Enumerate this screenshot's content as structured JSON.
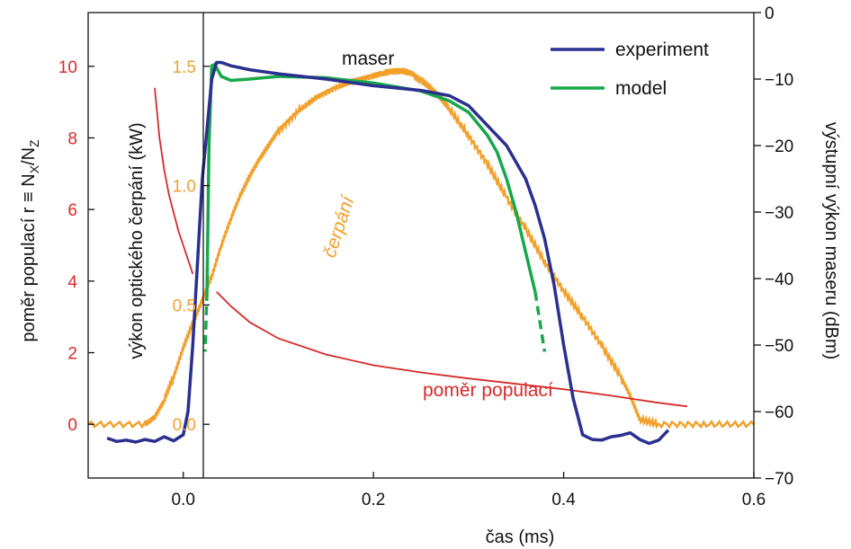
{
  "colors": {
    "experiment": "#2b2f8f",
    "model": "#16a84a",
    "pump": "#f2a02a",
    "ratio": "#d62a2a",
    "axis": "#111111"
  },
  "chart_data": {
    "type": "line",
    "x_axis": {
      "label": "čas (ms)",
      "lim": [
        -0.1,
        0.6
      ],
      "ticks": [
        0.0,
        0.2,
        0.4,
        0.6
      ],
      "tick_labels": [
        "0.0",
        "0.2",
        "0.4",
        "0.6"
      ]
    },
    "left_axis_ratio": {
      "label_prefix": "poměr populací   r ≡ N",
      "label_sub1": "X",
      "label_mid": "/N",
      "label_sub2": "Z",
      "lim": [
        -1.5,
        11.5
      ],
      "ticks": [
        0,
        2,
        4,
        6,
        8,
        10
      ],
      "tick_labels": [
        "0",
        "2",
        "4",
        "6",
        "8",
        "10"
      ]
    },
    "left_axis_pump": {
      "label": "výkon optického čerpání (kW)",
      "lim": [
        -0.225,
        1.725
      ],
      "ticks": [
        0.0,
        0.5,
        1.0,
        1.5
      ],
      "tick_labels": [
        "0.0",
        "0.5",
        "1.0",
        "1.5"
      ]
    },
    "right_axis": {
      "label": "výstupní výkon maseru (dBm)",
      "lim": [
        -70,
        0
      ],
      "ticks": [
        0,
        -10,
        -20,
        -30,
        -40,
        -50,
        -60,
        -70
      ],
      "tick_labels": [
        "0",
        "−10",
        "−20",
        "−30",
        "−40",
        "−50",
        "−60",
        "−70"
      ]
    },
    "legend": {
      "placement": "top-right",
      "entries": [
        {
          "name": "experiment",
          "color_key": "experiment"
        },
        {
          "name": "model",
          "color_key": "model"
        }
      ]
    },
    "annotations": {
      "maser": "maser",
      "pump": "čerpání",
      "ratio": "poměr populací"
    },
    "series": [
      {
        "name": "experiment",
        "axis": "right_dBm",
        "x": [
          -0.08,
          -0.07,
          -0.06,
          -0.05,
          -0.04,
          -0.03,
          -0.02,
          -0.01,
          0.0,
          0.005,
          0.01,
          0.02,
          0.03,
          0.035,
          0.04,
          0.05,
          0.07,
          0.1,
          0.15,
          0.2,
          0.25,
          0.28,
          0.3,
          0.32,
          0.34,
          0.36,
          0.37,
          0.38,
          0.39,
          0.4,
          0.41,
          0.42,
          0.43,
          0.44,
          0.45,
          0.46,
          0.47,
          0.48,
          0.49,
          0.5,
          0.51
        ],
        "y": [
          -64,
          -64.5,
          -64.3,
          -64.6,
          -64.2,
          -64.5,
          -63.8,
          -64.4,
          -63.5,
          -60,
          -50,
          -25,
          -10,
          -7.5,
          -7.5,
          -8,
          -8.6,
          -9.2,
          -10,
          -11,
          -11.7,
          -12.5,
          -14,
          -17,
          -20,
          -25,
          -29,
          -34,
          -41,
          -50,
          -58,
          -63.5,
          -64.2,
          -64.3,
          -63.8,
          -63.6,
          -63.2,
          -64.2,
          -64.8,
          -64.3,
          -62.8
        ]
      },
      {
        "name": "model",
        "axis": "right_dBm",
        "x": [
          0.025,
          0.027,
          0.03,
          0.033,
          0.036,
          0.04,
          0.05,
          0.07,
          0.1,
          0.15,
          0.2,
          0.25,
          0.28,
          0.3,
          0.32,
          0.33,
          0.34,
          0.35,
          0.36,
          0.37
        ],
        "y": [
          -42,
          -20,
          -8,
          -7.8,
          -8.6,
          -9.6,
          -10.2,
          -10,
          -9.6,
          -9.8,
          -10.6,
          -11.8,
          -13.3,
          -15,
          -18.5,
          -21,
          -25,
          -30,
          -36,
          -42
        ],
        "dashed_tails": [
          {
            "x": [
              0.025,
              0.023
            ],
            "y": [
              -42,
              -51
            ]
          },
          {
            "x": [
              0.37,
              0.38
            ],
            "y": [
              -42,
              -51
            ]
          }
        ]
      },
      {
        "name": "čerpání",
        "axis": "left_kW",
        "x": [
          -0.1,
          -0.04,
          -0.03,
          -0.02,
          -0.01,
          0.0,
          0.01,
          0.02,
          0.03,
          0.04,
          0.05,
          0.06,
          0.07,
          0.08,
          0.09,
          0.1,
          0.12,
          0.14,
          0.16,
          0.18,
          0.2,
          0.21,
          0.22,
          0.23,
          0.24,
          0.25,
          0.26,
          0.27,
          0.28,
          0.3,
          0.32,
          0.34,
          0.36,
          0.38,
          0.4,
          0.42,
          0.44,
          0.46,
          0.47,
          0.48,
          0.5,
          0.55,
          0.6
        ],
        "y": [
          0.0,
          0.0,
          0.03,
          0.1,
          0.2,
          0.32,
          0.42,
          0.52,
          0.62,
          0.75,
          0.86,
          0.96,
          1.04,
          1.11,
          1.17,
          1.23,
          1.31,
          1.37,
          1.41,
          1.44,
          1.46,
          1.47,
          1.48,
          1.48,
          1.47,
          1.44,
          1.41,
          1.37,
          1.32,
          1.21,
          1.09,
          0.95,
          0.82,
          0.68,
          0.56,
          0.45,
          0.33,
          0.2,
          0.12,
          0.02,
          0.0,
          0.0,
          0.0
        ]
      },
      {
        "name": "poměr populací",
        "axis": "left_ratio",
        "segments": [
          {
            "x": [
              -0.03,
              -0.025,
              -0.02,
              -0.015,
              -0.01,
              -0.005,
              0.0,
              0.005,
              0.01
            ],
            "y": [
              9.4,
              8.0,
              7.1,
              6.4,
              5.9,
              5.4,
              5.0,
              4.6,
              4.2
            ]
          },
          {
            "x": [
              0.035,
              0.05,
              0.07,
              0.1,
              0.15,
              0.2,
              0.25,
              0.3,
              0.35,
              0.4,
              0.45,
              0.5,
              0.53
            ],
            "y": [
              3.7,
              3.3,
              2.85,
              2.4,
              1.95,
              1.65,
              1.45,
              1.28,
              1.13,
              0.98,
              0.8,
              0.6,
              0.5
            ]
          }
        ]
      }
    ]
  }
}
